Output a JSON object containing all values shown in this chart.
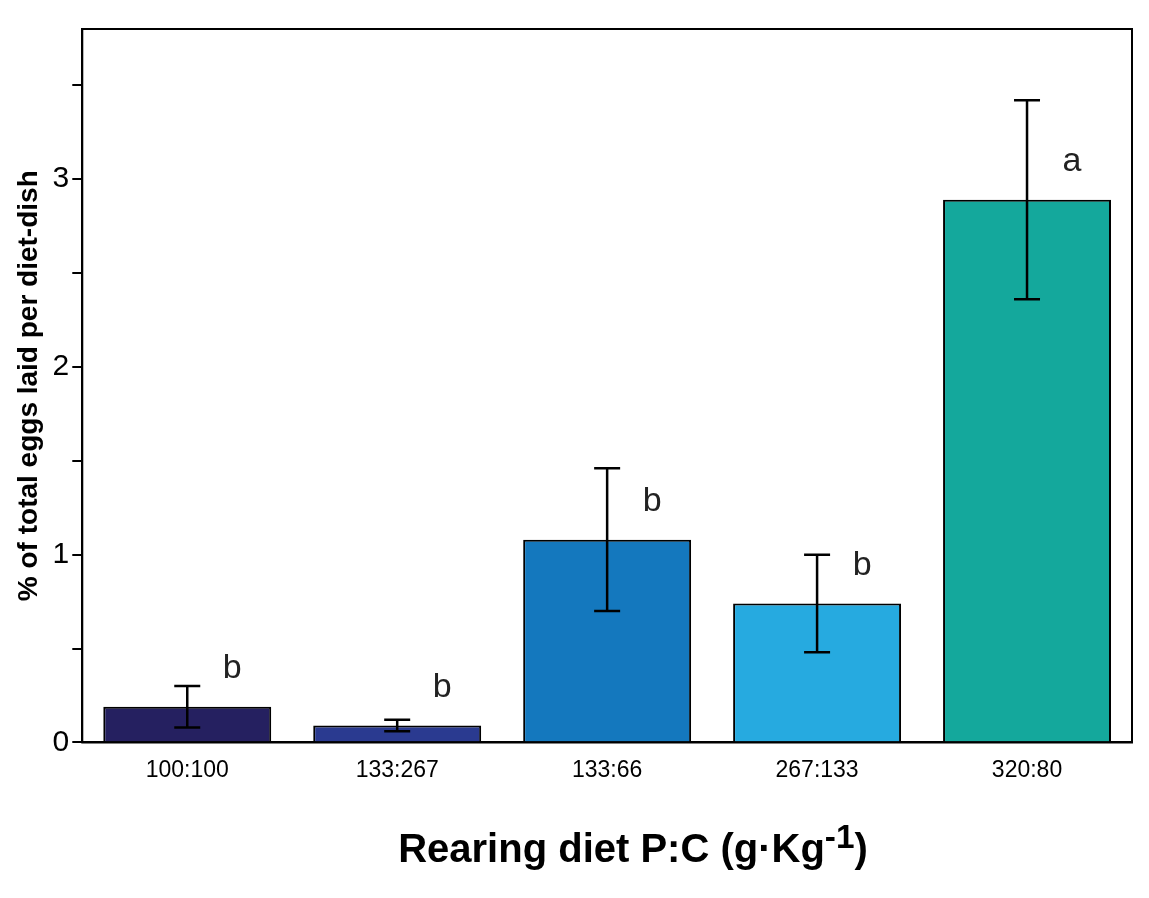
{
  "chart_data": {
    "type": "bar",
    "xlabel": "Rearing diet P:C (g·Kg$^{-1}$)",
    "ylabel": "% of total eggs laid per diet-dish",
    "categories": [
      "100:100",
      "133:267",
      "133:66",
      "267:133",
      "320:80"
    ],
    "values": [
      0.19,
      0.09,
      1.08,
      0.74,
      2.89
    ],
    "errors": [
      [
        0.08,
        0.3
      ],
      [
        0.06,
        0.12
      ],
      [
        0.7,
        1.46
      ],
      [
        0.48,
        1.0
      ],
      [
        2.36,
        3.42
      ]
    ],
    "colors": [
      "#252060",
      "#2a3a90",
      "#1478be",
      "#26aae0",
      "#14a89c"
    ],
    "ylim": [
      0,
      3.8
    ],
    "yticks": [
      0,
      {
        "value": 0.5,
        "label": null
      },
      1,
      {
        "value": 1.5,
        "label": null
      },
      2,
      {
        "value": 2.5,
        "label": null
      },
      3,
      {
        "value": 3.5,
        "label": null
      }
    ],
    "grid": false,
    "annotations": [
      "b",
      "b",
      "b",
      "b",
      "a"
    ]
  }
}
